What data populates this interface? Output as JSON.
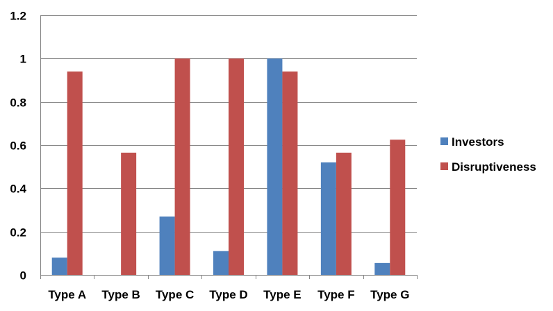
{
  "chart_data": {
    "type": "bar",
    "title": "",
    "xlabel": "",
    "ylabel": "",
    "ylim": [
      0,
      1.2
    ],
    "ytick_step": 0.2,
    "ytick_labels": [
      "0",
      "0.2",
      "0.4",
      "0.6",
      "0.8",
      "1",
      "1.2"
    ],
    "grid": true,
    "legend_position": "right",
    "categories": [
      "Type A",
      "Type B",
      "Type C",
      "Type D",
      "Type E",
      "Type F",
      "Type G"
    ],
    "series": [
      {
        "name": "Investors",
        "color": "#4F81BD",
        "values": [
          0.08,
          0,
          0.27,
          0.11,
          1.0,
          0.52,
          0.055
        ]
      },
      {
        "name": "Disruptiveness",
        "color": "#C0504D",
        "values": [
          0.94,
          0.565,
          1.0,
          1.0,
          0.94,
          0.565,
          0.625
        ]
      }
    ]
  }
}
